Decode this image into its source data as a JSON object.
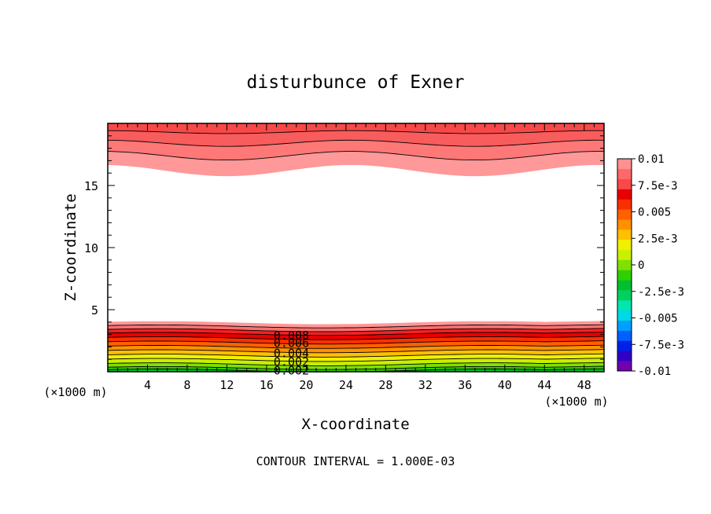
{
  "chart_data": {
    "type": "heatmap",
    "title": "disturbunce of Exner",
    "xlabel": "X-coordinate",
    "ylabel": "Z-coordinate",
    "x_unit": "(×1000 m)",
    "y_unit": "(×1000 m)",
    "xlim": [
      0,
      50
    ],
    "ylim": [
      0,
      20
    ],
    "x_ticks": [
      4,
      8,
      12,
      16,
      20,
      24,
      28,
      32,
      36,
      40,
      44,
      48
    ],
    "y_ticks": [
      5,
      10,
      15
    ],
    "footer": "CONTOUR INTERVAL = 1.000E-03",
    "contour_labels": [
      {
        "text": "0.008",
        "x": 18.5,
        "z": 2.9
      },
      {
        "text": "0.006",
        "x": 18.5,
        "z": 2.3
      },
      {
        "text": "0.004",
        "x": 18.5,
        "z": 1.5
      },
      {
        "text": "0.002",
        "x": 18.5,
        "z": 0.8
      },
      {
        "text": "0.002",
        "x": 18.5,
        "z": 0.1
      }
    ],
    "colorbar": {
      "levels": [
        -0.01,
        -0.0075,
        -0.005,
        -0.0025,
        0,
        0.0025,
        0.005,
        0.0075,
        0.01
      ],
      "tick_labels": [
        "0.01",
        "7.5e-3",
        "0.005",
        "2.5e-3",
        "0",
        "-2.5e-3",
        "-0.005",
        "-7.5e-3",
        "-0.01"
      ],
      "colors": [
        "#7000b0",
        "#3000c8",
        "#0020e8",
        "#0060ff",
        "#00a0ff",
        "#00d8e8",
        "#00e8b0",
        "#00d060",
        "#00c030",
        "#30d000",
        "#80e000",
        "#c8f000",
        "#f0f000",
        "#ffc000",
        "#ff9000",
        "#ff6000",
        "#f83000",
        "#e80000",
        "#f84848",
        "#ff6868",
        "#ff9090"
      ]
    }
  }
}
